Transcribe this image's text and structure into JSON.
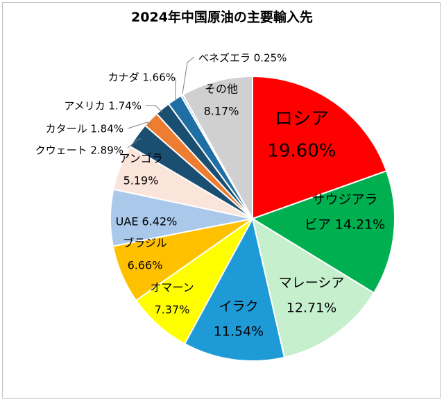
{
  "chart_data": {
    "type": "pie",
    "title": "2024年中国原油の主要輸入先",
    "start_angle_deg": 0,
    "direction": "clockwise",
    "slices": [
      {
        "name": "ロシア",
        "value": 19.6,
        "label_lines": [
          "ロシア",
          "19.60%"
        ],
        "color": "#ff0000",
        "label_inside": true,
        "label_size": "large"
      },
      {
        "name": "サウジアラビア",
        "value": 14.21,
        "label_lines": [
          "サウジアラ",
          "ビア 14.21%"
        ],
        "color": "#00b050",
        "label_inside": true
      },
      {
        "name": "マレーシア",
        "value": 12.71,
        "label_lines": [
          "マレーシア",
          "12.71%"
        ],
        "color": "#c6efce",
        "label_inside": true
      },
      {
        "name": "イラク",
        "value": 11.54,
        "label_lines": [
          "イラク",
          "11.54%"
        ],
        "color": "#1e9bd7",
        "label_inside": true
      },
      {
        "name": "オマーン",
        "value": 7.37,
        "label_lines": [
          "オマーン",
          "7.37%"
        ],
        "color": "#ffff00",
        "label_inside": true
      },
      {
        "name": "ブラジル",
        "value": 6.66,
        "label_lines": [
          "ブラジル",
          "6.66%"
        ],
        "color": "#ffc000",
        "label_inside": true
      },
      {
        "name": "UAE",
        "value": 6.42,
        "label_lines": [
          "UAE 6.42%"
        ],
        "color": "#a9c8ea",
        "label_inside": true
      },
      {
        "name": "アンゴラ",
        "value": 5.19,
        "label_lines": [
          "アンゴラ",
          "5.19%"
        ],
        "color": "#fbe4d9",
        "label_inside": true
      },
      {
        "name": "クウェート",
        "value": 2.89,
        "label_lines": [
          "クウェート 2.89%"
        ],
        "color": "#1b4f72",
        "label_inside": false
      },
      {
        "name": "カタール",
        "value": 1.84,
        "label_lines": [
          "カタール 1.84%"
        ],
        "color": "#ed7d31",
        "label_inside": false
      },
      {
        "name": "アメリカ",
        "value": 1.74,
        "label_lines": [
          "アメリカ 1.74%"
        ],
        "color": "#1b4f72",
        "label_inside": false
      },
      {
        "name": "カナダ",
        "value": 1.66,
        "label_lines": [
          "カナダ 1.66%"
        ],
        "color": "#1f6fa5",
        "label_inside": false
      },
      {
        "name": "ベネズエラ",
        "value": 0.25,
        "label_lines": [
          "ベネズエラ 0.25%"
        ],
        "color": "#9dc3e6",
        "label_inside": false
      },
      {
        "name": "その他",
        "value": 8.17,
        "label_lines": [
          "その他",
          "8.17%"
        ],
        "color": "#d0d0d0",
        "label_inside": true
      }
    ]
  }
}
